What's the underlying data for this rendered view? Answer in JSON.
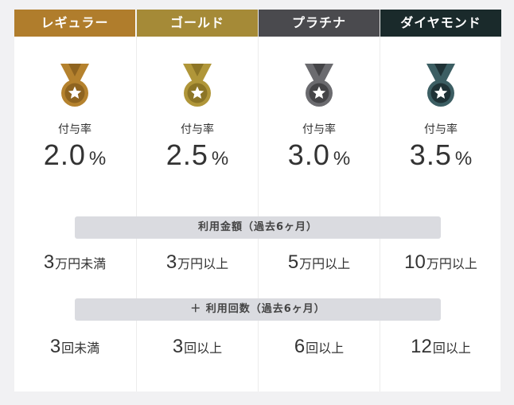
{
  "rate_label": "付与率",
  "percent_sign": "%",
  "bars": {
    "amount_label": "利用金額（過去6ヶ月）",
    "count_label": "＋ 利用回数（過去6ヶ月）"
  },
  "tiers": [
    {
      "name": "レギュラー",
      "header_color": "#b07d2c",
      "medal_color": "#b5822e",
      "medal_color_dark": "#8f6420",
      "rate": "2.0",
      "amount_num": "3",
      "amount_unit": "万円未満",
      "count_num": "3",
      "count_unit": "回未満"
    },
    {
      "name": "ゴールド",
      "header_color": "#a58a37",
      "medal_color": "#b09639",
      "medal_color_dark": "#8c7526",
      "rate": "2.5",
      "amount_num": "3",
      "amount_unit": "万円以上",
      "count_num": "3",
      "count_unit": "回以上"
    },
    {
      "name": "プラチナ",
      "header_color": "#4a4a4e",
      "medal_color": "#6b6b6f",
      "medal_color_dark": "#444447",
      "rate": "3.0",
      "amount_num": "5",
      "amount_unit": "万円以上",
      "count_num": "6",
      "count_unit": "回以上"
    },
    {
      "name": "ダイヤモンド",
      "header_color": "#1a2a2b",
      "medal_color": "#3c5e63",
      "medal_color_dark": "#1f3236",
      "rate": "3.5",
      "amount_num": "10",
      "amount_unit": "万円以上",
      "count_num": "12",
      "count_unit": "回以上"
    }
  ]
}
